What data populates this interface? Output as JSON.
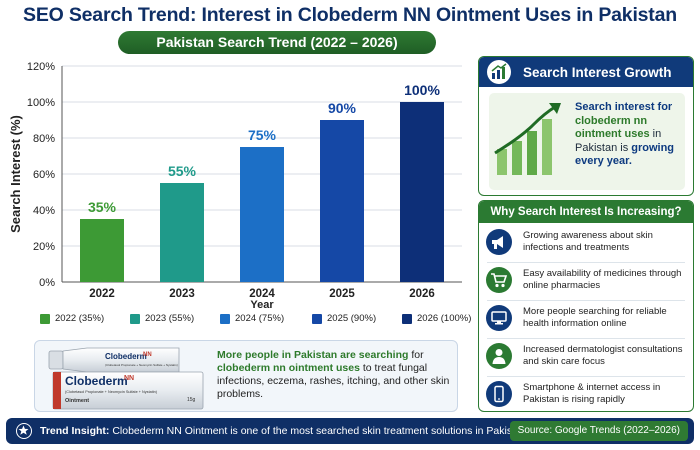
{
  "title": "SEO Search Trend: Interest in Clobederm NN Ointment Uses in Pakistan",
  "subtitle": "Pakistan Search Trend (2022 – 2026)",
  "chart_data": {
    "type": "bar",
    "categories": [
      "2022",
      "2023",
      "2024",
      "2025",
      "2026"
    ],
    "values": [
      35,
      55,
      75,
      90,
      100
    ],
    "data_labels": [
      "35%",
      "55%",
      "75%",
      "90%",
      "100%"
    ],
    "xlabel": "Year",
    "ylabel": "Search Interest (%)",
    "ylim": [
      0,
      120
    ],
    "yticks": [
      "0%",
      "20%",
      "40%",
      "60%",
      "80%",
      "100%",
      "120%"
    ],
    "grid": true,
    "legend_placement": "bottom",
    "legend": [
      "2022 (35%)",
      "2023 (55%)",
      "2024 (75%)",
      "2025 (90%)",
      "2026 (100%)"
    ],
    "colors": [
      "#3d9a35",
      "#1f9a8a",
      "#1c6fc6",
      "#1548a6",
      "#0d2f78"
    ]
  },
  "product": {
    "brand": "Clobederm",
    "brand_mark": "NN",
    "composition": "(Clobetasol Propionate + Neomycin Sulfate + Nystatin)",
    "form": "Ointment",
    "weight": "15g",
    "text_1": "More people in Pakistan are searching",
    "text_2": " for ",
    "text_3": "clobederm nn ointment uses",
    "text_4": " to treat fungal infections, eczema, rashes, itching, and other skin problems."
  },
  "growth_panel": {
    "title": "Search Interest Growth",
    "text_1": "Search interest for ",
    "text_2": "clobederm nn ointment uses",
    "text_3": " in Pakistan is ",
    "text_4": "growing every year.",
    "icon": "growth-chart-icon"
  },
  "reasons_panel": {
    "title": "Why Search Interest Is Increasing?",
    "items": [
      {
        "text": "Growing awareness about skin infections and treatments",
        "icon": "megaphone-icon"
      },
      {
        "text": "Easy availability of medicines through online pharmacies",
        "icon": "cart-icon"
      },
      {
        "text": "More people searching for reliable health information online",
        "icon": "monitor-icon"
      },
      {
        "text": "Increased dermatologist consultations and skin care focus",
        "icon": "doctor-icon"
      },
      {
        "text": "Smartphone & internet access in Pakistan is rising rapidly",
        "icon": "smartphone-icon"
      }
    ]
  },
  "footer": {
    "label": "Trend Insight:",
    "text": " Clobederm NN Ointment is one of the most searched skin treatment solutions in Pakistan.",
    "source": "Source: Google Trends (2022–2026)"
  },
  "colors": {
    "navy": "#0f2f66",
    "green": "#2b7a32"
  }
}
